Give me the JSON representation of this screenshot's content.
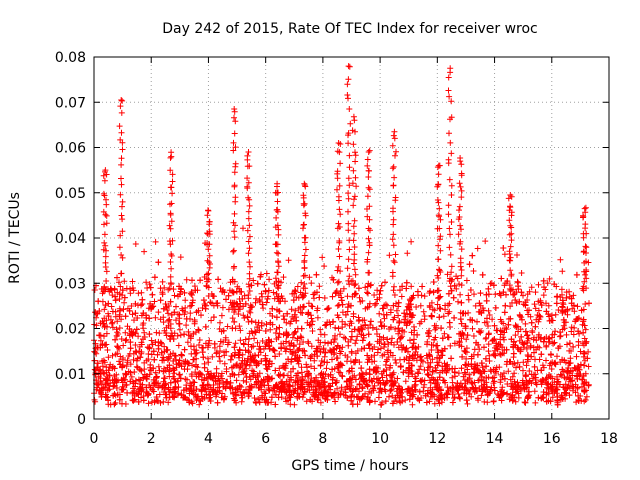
{
  "chart_data": {
    "type": "scatter",
    "title": "Day 242 of 2015, Rate Of TEC Index for receiver wroc",
    "xlabel": "GPS time / hours",
    "ylabel": "ROTI / TECUs",
    "xlim": [
      0,
      18
    ],
    "ylim": [
      0,
      0.08
    ],
    "xticks": [
      0,
      2,
      4,
      6,
      8,
      10,
      12,
      14,
      16,
      18
    ],
    "xtick_labels": [
      "0",
      "2",
      "4",
      "6",
      "8",
      "10",
      "12",
      "14",
      "16",
      "18"
    ],
    "yticks": [
      0,
      0.01,
      0.02,
      0.03,
      0.04,
      0.05,
      0.06,
      0.07,
      0.08
    ],
    "ytick_labels": [
      "0",
      "0.01",
      "0.02",
      "0.03",
      "0.04",
      "0.05",
      "0.06",
      "0.07",
      "0.08"
    ],
    "grid": true,
    "marker": "+",
    "color": "#ff0000",
    "series": [
      {
        "name": "ROTI",
        "x_range": [
          0,
          17.3
        ],
        "typical_range": [
          0.005,
          0.03
        ],
        "peaks": [
          {
            "x": 0.4,
            "y": 0.055
          },
          {
            "x": 0.95,
            "y": 0.0705
          },
          {
            "x": 2.7,
            "y": 0.058
          },
          {
            "x": 4.0,
            "y": 0.046
          },
          {
            "x": 4.9,
            "y": 0.0685
          },
          {
            "x": 5.4,
            "y": 0.059
          },
          {
            "x": 6.4,
            "y": 0.052
          },
          {
            "x": 7.35,
            "y": 0.052
          },
          {
            "x": 8.55,
            "y": 0.061
          },
          {
            "x": 8.9,
            "y": 0.078
          },
          {
            "x": 9.1,
            "y": 0.066
          },
          {
            "x": 9.6,
            "y": 0.059
          },
          {
            "x": 10.5,
            "y": 0.0635
          },
          {
            "x": 12.05,
            "y": 0.056
          },
          {
            "x": 12.45,
            "y": 0.0775
          },
          {
            "x": 12.8,
            "y": 0.057
          },
          {
            "x": 14.55,
            "y": 0.0495
          },
          {
            "x": 17.15,
            "y": 0.0465
          }
        ]
      }
    ]
  }
}
